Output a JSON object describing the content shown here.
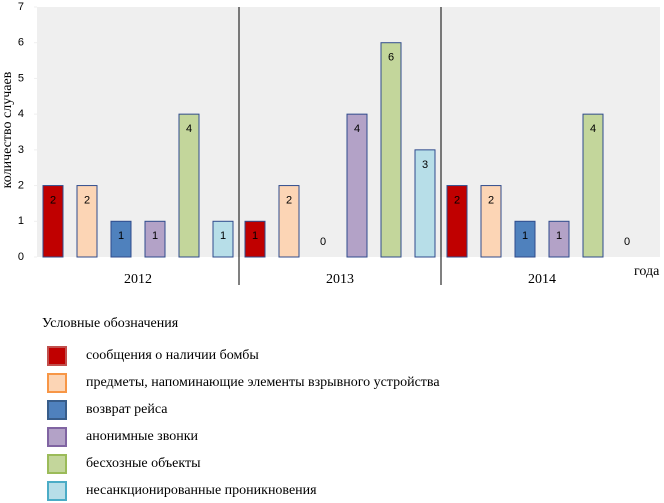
{
  "chart_data": {
    "type": "bar",
    "y_label": "количество случаев",
    "x_label": "года",
    "legend_title": "Условные обозначения",
    "categories": [
      "2012",
      "2013",
      "2014"
    ],
    "series": [
      {
        "name": "сообщения о наличии бомбы",
        "color": "#c00000",
        "values": [
          2,
          1,
          2
        ]
      },
      {
        "name": "предметы, напоминающие элементы взрывного устройства",
        "color": "#fcd5b5",
        "values": [
          2,
          2,
          2
        ]
      },
      {
        "name": "возврат рейса",
        "color": "#4f81bd",
        "values": [
          1,
          0,
          1
        ]
      },
      {
        "name": "анонимные звонки",
        "color": "#b3a2c7",
        "values": [
          1,
          4,
          1
        ]
      },
      {
        "name": "бесхозные объекты",
        "color": "#c3d69b",
        "values": [
          4,
          6,
          4
        ]
      },
      {
        "name": "несанкционированные проникновения",
        "color": "#b7dee8",
        "values": [
          1,
          3,
          0
        ]
      }
    ],
    "ylim": [
      0,
      7
    ],
    "yticks": [
      0,
      1,
      2,
      3,
      4,
      5,
      6,
      7
    ]
  }
}
